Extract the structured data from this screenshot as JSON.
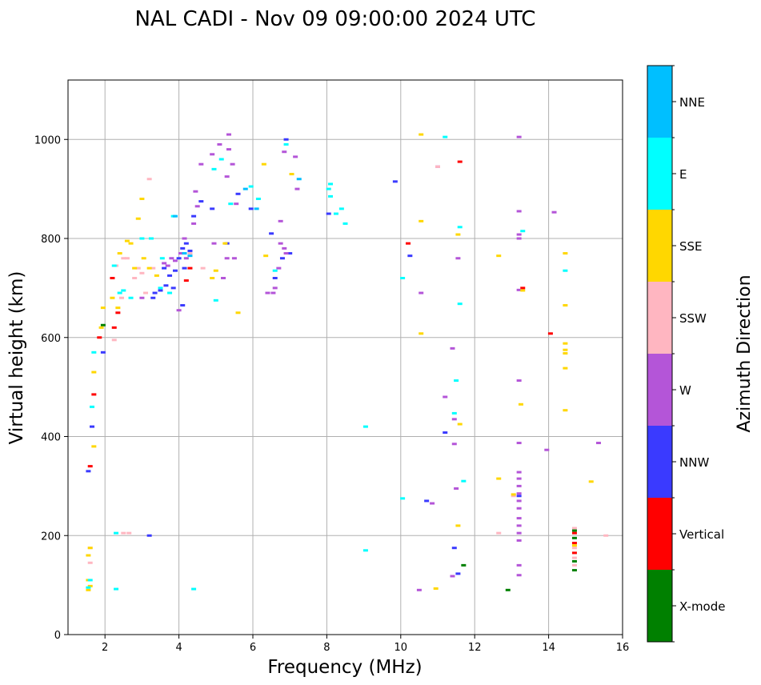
{
  "chart_data": {
    "type": "scatter",
    "title": "NAL CADI - Nov 09 09:00:00 2024 UTC",
    "xlabel": "Frequency (MHz)",
    "ylabel": "Virtual height (km)",
    "xlim": [
      1,
      16
    ],
    "ylim": [
      0,
      1120
    ],
    "xticks": [
      2,
      4,
      6,
      8,
      10,
      12,
      14,
      16
    ],
    "yticks": [
      0,
      200,
      400,
      600,
      800,
      1000
    ],
    "grid": true,
    "colorbar": {
      "label": "Azimuth Direction",
      "categories": [
        {
          "name": "X-mode",
          "color": "#008000"
        },
        {
          "name": "Vertical",
          "color": "#ff0000"
        },
        {
          "name": "NNW",
          "color": "#3a3aff"
        },
        {
          "name": "W",
          "color": "#b455d8"
        },
        {
          "name": "SSW",
          "color": "#ffb6c1"
        },
        {
          "name": "SSE",
          "color": "#ffd700"
        },
        {
          "name": "E",
          "color": "#00ffff"
        },
        {
          "name": "NNE",
          "color": "#00bfff"
        }
      ]
    },
    "series": [
      {
        "name": "X-mode",
        "points": [
          [
            12.9,
            90
          ],
          [
            14.7,
            130
          ],
          [
            14.7,
            148
          ],
          [
            14.7,
            195
          ],
          [
            14.7,
            210
          ],
          [
            11.7,
            140
          ],
          [
            1.95,
            625
          ]
        ]
      },
      {
        "name": "Vertical",
        "points": [
          [
            1.6,
            340
          ],
          [
            1.7,
            485
          ],
          [
            1.85,
            600
          ],
          [
            2.25,
            620
          ],
          [
            2.35,
            650
          ],
          [
            2.2,
            720
          ],
          [
            4.2,
            715
          ],
          [
            4.3,
            740
          ],
          [
            11.6,
            955
          ],
          [
            10.2,
            790
          ],
          [
            14.05,
            608
          ],
          [
            14.7,
            165
          ],
          [
            14.7,
            185
          ],
          [
            14.7,
            205
          ],
          [
            13.3,
            700
          ]
        ]
      },
      {
        "name": "NNW",
        "points": [
          [
            1.55,
            330
          ],
          [
            1.65,
            420
          ],
          [
            1.95,
            570
          ],
          [
            3.2,
            200
          ],
          [
            3.35,
            690
          ],
          [
            3.5,
            695
          ],
          [
            3.65,
            705
          ],
          [
            3.75,
            725
          ],
          [
            3.9,
            735
          ],
          [
            4.0,
            760
          ],
          [
            4.1,
            780
          ],
          [
            4.2,
            790
          ],
          [
            3.3,
            680
          ],
          [
            3.6,
            740
          ],
          [
            3.85,
            700
          ],
          [
            4.15,
            740
          ],
          [
            4.3,
            775
          ],
          [
            4.1,
            665
          ],
          [
            4.4,
            845
          ],
          [
            4.6,
            875
          ],
          [
            4.9,
            860
          ],
          [
            5.3,
            790
          ],
          [
            5.6,
            890
          ],
          [
            5.95,
            860
          ],
          [
            6.6,
            720
          ],
          [
            6.8,
            760
          ],
          [
            7.0,
            770
          ],
          [
            6.5,
            810
          ],
          [
            6.9,
            1000
          ],
          [
            8.05,
            850
          ],
          [
            9.85,
            915
          ],
          [
            10.25,
            765
          ],
          [
            10.7,
            270
          ],
          [
            11.2,
            408
          ],
          [
            11.45,
            175
          ],
          [
            11.55,
            123
          ],
          [
            13.2,
            280
          ]
        ]
      },
      {
        "name": "W",
        "points": [
          [
            3.6,
            750
          ],
          [
            3.7,
            745
          ],
          [
            3.8,
            760
          ],
          [
            3.9,
            755
          ],
          [
            4.05,
            770
          ],
          [
            4.15,
            800
          ],
          [
            4.2,
            760
          ],
          [
            4.4,
            830
          ],
          [
            4.5,
            865
          ],
          [
            4.45,
            895
          ],
          [
            4.6,
            950
          ],
          [
            4.9,
            970
          ],
          [
            5.1,
            990
          ],
          [
            5.35,
            1010
          ],
          [
            5.35,
            980
          ],
          [
            5.45,
            950
          ],
          [
            5.3,
            925
          ],
          [
            5.55,
            870
          ],
          [
            5.3,
            760
          ],
          [
            5.5,
            760
          ],
          [
            5.2,
            720
          ],
          [
            4.95,
            790
          ],
          [
            4.0,
            655
          ],
          [
            3.0,
            680
          ],
          [
            6.4,
            690
          ],
          [
            6.55,
            690
          ],
          [
            6.6,
            700
          ],
          [
            6.7,
            740
          ],
          [
            6.75,
            790
          ],
          [
            6.85,
            780
          ],
          [
            6.9,
            770
          ],
          [
            6.75,
            835
          ],
          [
            7.15,
            965
          ],
          [
            7.2,
            900
          ],
          [
            6.85,
            975
          ],
          [
            10.55,
            690
          ],
          [
            10.85,
            265
          ],
          [
            10.5,
            90
          ],
          [
            11.0,
            945
          ],
          [
            11.2,
            480
          ],
          [
            11.4,
            578
          ],
          [
            11.45,
            435
          ],
          [
            11.45,
            385
          ],
          [
            11.5,
            295
          ],
          [
            11.55,
            760
          ],
          [
            11.4,
            118
          ],
          [
            13.2,
            1005
          ],
          [
            13.2,
            855
          ],
          [
            13.2,
            808
          ],
          [
            13.2,
            800
          ],
          [
            13.2,
            696
          ],
          [
            13.2,
            513
          ],
          [
            13.2,
            387
          ],
          [
            13.2,
            328
          ],
          [
            13.2,
            315
          ],
          [
            13.2,
            300
          ],
          [
            13.2,
            285
          ],
          [
            13.2,
            270
          ],
          [
            13.2,
            255
          ],
          [
            13.2,
            235
          ],
          [
            13.2,
            220
          ],
          [
            13.2,
            205
          ],
          [
            13.2,
            190
          ],
          [
            13.2,
            140
          ],
          [
            13.2,
            120
          ],
          [
            14.15,
            853
          ],
          [
            15.35,
            387
          ],
          [
            13.95,
            373
          ]
        ]
      },
      {
        "name": "SSW",
        "points": [
          [
            1.6,
            145
          ],
          [
            1.6,
            175
          ],
          [
            2.25,
            595
          ],
          [
            2.45,
            680
          ],
          [
            2.5,
            760
          ],
          [
            2.6,
            760
          ],
          [
            2.3,
            745
          ],
          [
            2.8,
            720
          ],
          [
            2.9,
            740
          ],
          [
            3.0,
            730
          ],
          [
            3.1,
            690
          ],
          [
            3.3,
            740
          ],
          [
            2.5,
            205
          ],
          [
            2.65,
            205
          ],
          [
            3.2,
            920
          ],
          [
            4.3,
            770
          ],
          [
            4.65,
            740
          ],
          [
            11.0,
            945
          ],
          [
            12.65,
            205
          ],
          [
            14.7,
            140
          ],
          [
            14.7,
            155
          ],
          [
            14.7,
            175
          ],
          [
            14.7,
            215
          ],
          [
            15.55,
            200
          ],
          [
            13.05,
            280
          ]
        ]
      },
      {
        "name": "SSE",
        "points": [
          [
            1.55,
            90
          ],
          [
            1.55,
            110
          ],
          [
            1.55,
            160
          ],
          [
            1.6,
            175
          ],
          [
            1.6,
            98
          ],
          [
            1.7,
            380
          ],
          [
            1.7,
            530
          ],
          [
            1.9,
            620
          ],
          [
            1.95,
            660
          ],
          [
            2.2,
            680
          ],
          [
            2.35,
            660
          ],
          [
            2.4,
            770
          ],
          [
            2.6,
            795
          ],
          [
            2.7,
            790
          ],
          [
            2.9,
            840
          ],
          [
            3.0,
            880
          ],
          [
            3.05,
            760
          ],
          [
            2.8,
            740
          ],
          [
            3.2,
            740
          ],
          [
            3.4,
            725
          ],
          [
            4.9,
            720
          ],
          [
            5.0,
            735
          ],
          [
            5.25,
            790
          ],
          [
            5.6,
            650
          ],
          [
            6.3,
            950
          ],
          [
            6.35,
            765
          ],
          [
            7.05,
            930
          ],
          [
            10.55,
            1010
          ],
          [
            10.55,
            835
          ],
          [
            10.55,
            608
          ],
          [
            10.95,
            93
          ],
          [
            11.55,
            808
          ],
          [
            11.55,
            220
          ],
          [
            11.6,
            425
          ],
          [
            12.65,
            315
          ],
          [
            12.65,
            765
          ],
          [
            13.05,
            283
          ],
          [
            13.25,
            465
          ],
          [
            14.45,
            770
          ],
          [
            14.45,
            665
          ],
          [
            14.45,
            588
          ],
          [
            14.45,
            575
          ],
          [
            14.45,
            568
          ],
          [
            14.45,
            538
          ],
          [
            14.45,
            453
          ],
          [
            15.15,
            309
          ],
          [
            14.7,
            180
          ],
          [
            13.3,
            695
          ]
        ]
      },
      {
        "name": "E",
        "points": [
          [
            1.55,
            95
          ],
          [
            1.6,
            110
          ],
          [
            1.65,
            460
          ],
          [
            1.7,
            570
          ],
          [
            2.25,
            745
          ],
          [
            2.4,
            690
          ],
          [
            2.5,
            695
          ],
          [
            2.3,
            205
          ],
          [
            2.3,
            92
          ],
          [
            2.7,
            680
          ],
          [
            3.0,
            800
          ],
          [
            3.25,
            800
          ],
          [
            3.5,
            700
          ],
          [
            3.55,
            760
          ],
          [
            3.75,
            690
          ],
          [
            3.85,
            845
          ],
          [
            4.4,
            92
          ],
          [
            4.95,
            940
          ],
          [
            5.0,
            675
          ],
          [
            5.15,
            960
          ],
          [
            5.4,
            870
          ],
          [
            5.95,
            905
          ],
          [
            6.15,
            880
          ],
          [
            6.6,
            735
          ],
          [
            6.9,
            990
          ],
          [
            8.1,
            910
          ],
          [
            8.05,
            900
          ],
          [
            8.4,
            860
          ],
          [
            8.5,
            830
          ],
          [
            8.25,
            850
          ],
          [
            8.1,
            885
          ],
          [
            9.05,
            420
          ],
          [
            9.05,
            170
          ],
          [
            10.05,
            720
          ],
          [
            10.05,
            275
          ],
          [
            11.2,
            1005
          ],
          [
            11.5,
            513
          ],
          [
            11.45,
            447
          ],
          [
            11.6,
            668
          ],
          [
            11.6,
            823
          ],
          [
            11.7,
            310
          ],
          [
            13.3,
            815
          ],
          [
            14.45,
            735
          ]
        ]
      },
      {
        "name": "NNE",
        "points": [
          [
            3.9,
            845
          ],
          [
            4.15,
            770
          ],
          [
            4.3,
            765
          ],
          [
            5.8,
            900
          ],
          [
            6.1,
            860
          ],
          [
            7.25,
            920
          ]
        ]
      }
    ]
  }
}
